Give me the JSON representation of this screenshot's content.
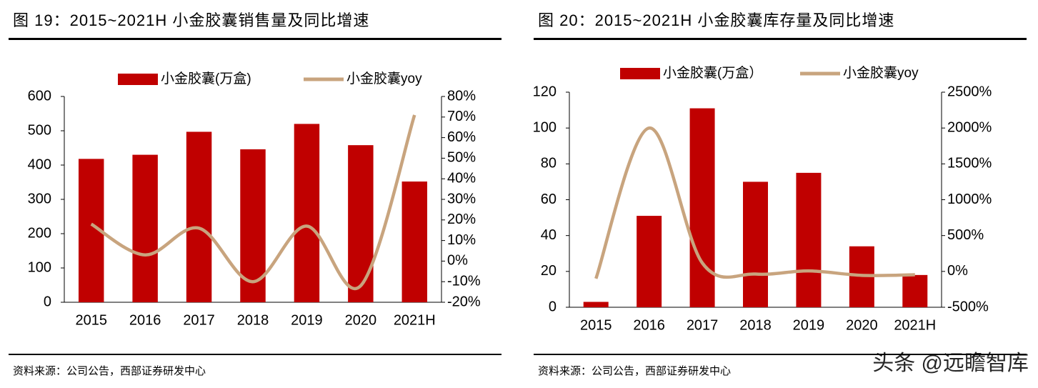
{
  "chart_data": [
    {
      "type": "combo",
      "title": "图 19：2015~2021H 小金胶囊销售量及同比增速",
      "categories": [
        "2015",
        "2016",
        "2017",
        "2018",
        "2019",
        "2020",
        "2021H"
      ],
      "series": [
        {
          "name": "小金胶囊(万盒)",
          "type": "bar",
          "color": "#c00000",
          "values": [
            418,
            430,
            497,
            446,
            520,
            458,
            352
          ]
        },
        {
          "name": "小金胶囊yoy",
          "type": "line",
          "color": "#c8a47e",
          "axis": "y2",
          "values": [
            18,
            3,
            16,
            -10,
            17,
            -12,
            71
          ]
        }
      ],
      "ylim": [
        0,
        600
      ],
      "yticks": [
        0,
        100,
        200,
        300,
        400,
        500,
        600
      ],
      "y2lim": [
        -20,
        80
      ],
      "y2ticks": [
        {
          "value": -20,
          "label": "-20%"
        },
        {
          "value": -10,
          "label": "-10%"
        },
        {
          "value": 0,
          "label": "0%"
        },
        {
          "value": 10,
          "label": "10%"
        },
        {
          "value": 20,
          "label": "20%"
        },
        {
          "value": 30,
          "label": "30%"
        },
        {
          "value": 40,
          "label": "40%"
        },
        {
          "value": 50,
          "label": "50%"
        },
        {
          "value": 60,
          "label": "60%"
        },
        {
          "value": 70,
          "label": "70%"
        },
        {
          "value": 80,
          "label": "80%"
        }
      ],
      "source": "资料来源：公司公告，西部证券研发中心"
    },
    {
      "type": "combo",
      "title": "图 20：2015~2021H 小金胶囊库存量及同比增速",
      "categories": [
        "2015",
        "2016",
        "2017",
        "2018",
        "2019",
        "2020",
        "2021H"
      ],
      "series": [
        {
          "name": "小金胶囊(万盒）",
          "type": "bar",
          "color": "#c00000",
          "values": [
            3,
            51,
            111,
            70,
            75,
            34,
            18
          ]
        },
        {
          "name": "小金胶囊yoy",
          "type": "line",
          "color": "#c8a47e",
          "axis": "y2",
          "values": [
            -100,
            2000,
            118,
            -37,
            7,
            -55,
            -47
          ]
        }
      ],
      "ylim": [
        0,
        120
      ],
      "yticks": [
        0,
        20,
        40,
        60,
        80,
        100,
        120
      ],
      "y2lim": [
        -500,
        2500
      ],
      "y2ticks": [
        {
          "value": -500,
          "label": "-500%"
        },
        {
          "value": 0,
          "label": "0%"
        },
        {
          "value": 500,
          "label": "500%"
        },
        {
          "value": 1000,
          "label": "1000%"
        },
        {
          "value": 1500,
          "label": "1500%"
        },
        {
          "value": 2000,
          "label": "2000%"
        },
        {
          "value": 2500,
          "label": "2500%"
        }
      ],
      "source": "资料来源：公司公告，西部证券研发中心"
    }
  ],
  "watermark": "头条 @远瞻智库"
}
